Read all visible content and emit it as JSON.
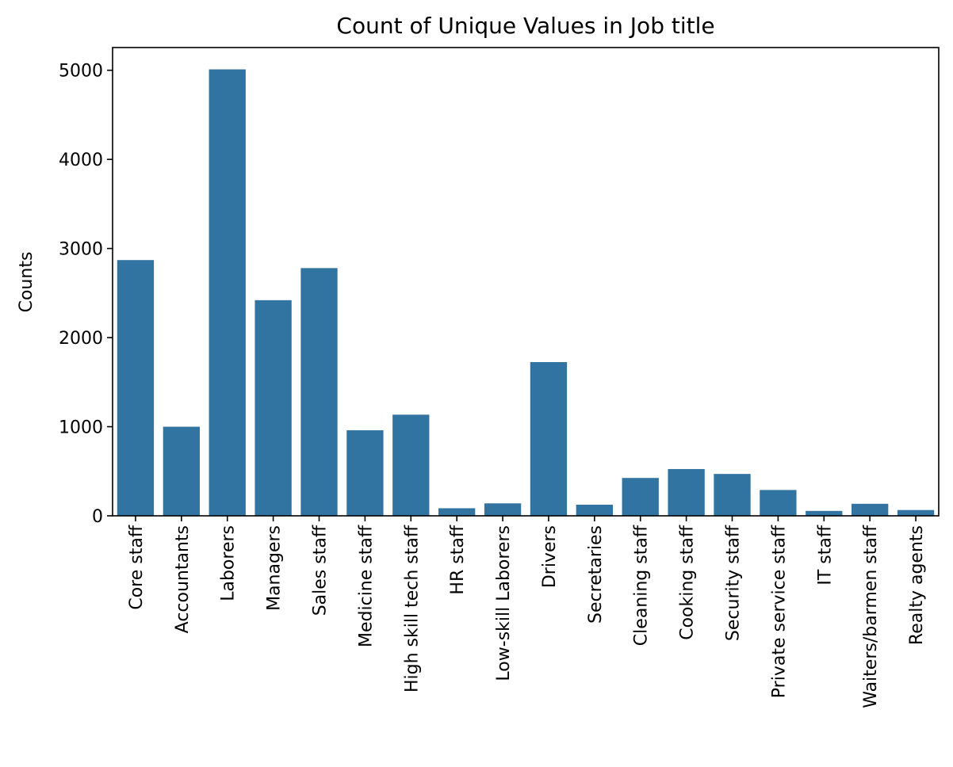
{
  "chart_data": {
    "type": "bar",
    "title": "Count of Unique Values in Job title",
    "xlabel": "",
    "ylabel": "Counts",
    "categories": [
      "Core staff",
      "Accountants",
      "Laborers",
      "Managers",
      "Sales staff",
      "Medicine staff",
      "High skill tech staff",
      "HR staff",
      "Low-skill Laborers",
      "Drivers",
      "Secretaries",
      "Cleaning staff",
      "Cooking staff",
      "Security staff",
      "Private service staff",
      "IT staff",
      "Waiters/barmen staff",
      "Realty agents"
    ],
    "values": [
      2870,
      1000,
      5010,
      2420,
      2780,
      960,
      1135,
      85,
      140,
      1725,
      125,
      425,
      525,
      470,
      290,
      55,
      135,
      65
    ],
    "ylim": [
      0,
      5255
    ],
    "yticks": [
      0,
      1000,
      2000,
      3000,
      4000,
      5000
    ],
    "bar_color": "#3274a1",
    "grid": false,
    "legend": "none"
  }
}
